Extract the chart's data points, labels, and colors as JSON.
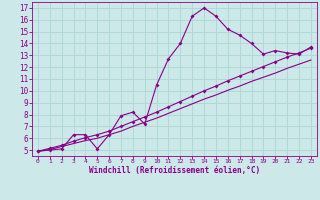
{
  "xlabel": "Windchill (Refroidissement éolien,°C)",
  "bg_color": "#cce8e8",
  "grid_color": "#b0d8d8",
  "line_color": "#880088",
  "x_data": [
    0,
    1,
    2,
    3,
    4,
    5,
    6,
    7,
    8,
    9,
    10,
    11,
    12,
    13,
    14,
    15,
    16,
    17,
    18,
    19,
    20,
    21,
    22,
    23
  ],
  "y_curve": [
    4.9,
    5.0,
    5.1,
    6.3,
    6.3,
    5.1,
    6.3,
    7.9,
    8.2,
    7.2,
    10.5,
    12.7,
    14.0,
    16.3,
    17.0,
    16.3,
    15.2,
    14.7,
    14.0,
    13.1,
    13.4,
    13.2,
    13.1,
    13.7
  ],
  "y_line1": [
    4.9,
    5.05,
    5.3,
    5.55,
    5.8,
    6.0,
    6.3,
    6.6,
    7.0,
    7.35,
    7.7,
    8.1,
    8.5,
    8.9,
    9.3,
    9.65,
    10.05,
    10.4,
    10.8,
    11.15,
    11.5,
    11.9,
    12.25,
    12.6
  ],
  "y_line2": [
    4.9,
    5.15,
    5.4,
    5.75,
    6.05,
    6.3,
    6.6,
    7.0,
    7.4,
    7.8,
    8.2,
    8.65,
    9.1,
    9.55,
    10.0,
    10.4,
    10.85,
    11.25,
    11.65,
    12.05,
    12.45,
    12.85,
    13.2,
    13.6
  ],
  "xlim": [
    -0.5,
    23.5
  ],
  "ylim": [
    4.5,
    17.5
  ],
  "xticks": [
    0,
    1,
    2,
    3,
    4,
    5,
    6,
    7,
    8,
    9,
    10,
    11,
    12,
    13,
    14,
    15,
    16,
    17,
    18,
    19,
    20,
    21,
    22,
    23
  ],
  "yticks": [
    5,
    6,
    7,
    8,
    9,
    10,
    11,
    12,
    13,
    14,
    15,
    16,
    17
  ]
}
